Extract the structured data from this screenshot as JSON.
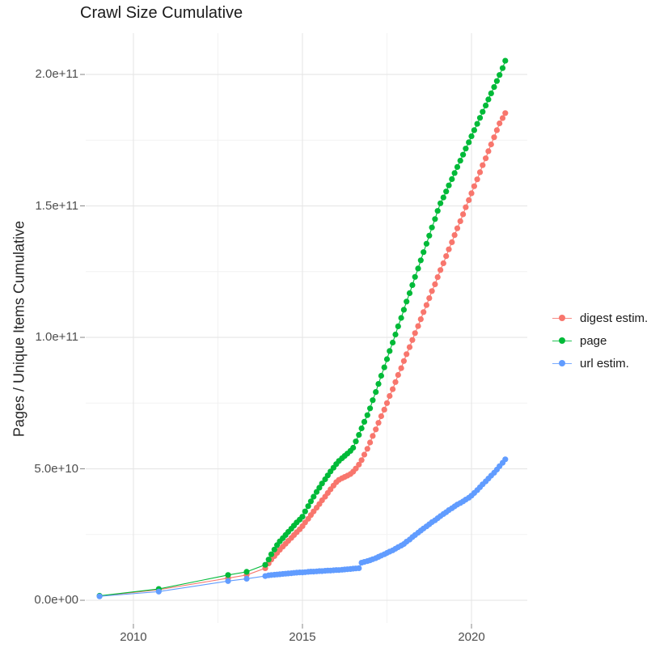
{
  "chart_data": {
    "type": "scatter",
    "title": "Crawl Size Cumulative",
    "xlabel": "",
    "ylabel": "Pages / Unique Items Cumulative",
    "value_unit": "1e9 (value 50 = 5.0e+10)",
    "grid": true,
    "legend_position": "right",
    "x_domain": [
      2008.59,
      2021.65
    ],
    "y_domain": [
      -8.6,
      215.7
    ],
    "x_ticks": [
      {
        "label": "2010",
        "value": 2010
      },
      {
        "label": "2015",
        "value": 2015
      },
      {
        "label": "2020",
        "value": 2020
      }
    ],
    "x_minor_ticks": [
      2012.5,
      2017.5
    ],
    "y_ticks": [
      {
        "label": "0.0e+00",
        "value": 0
      },
      {
        "label": "5.0e+10",
        "value": 50
      },
      {
        "label": "1.0e+11",
        "value": 100
      },
      {
        "label": "1.5e+11",
        "value": 150
      },
      {
        "label": "2.0e+11",
        "value": 200
      }
    ],
    "y_minor_ticks": [
      25,
      75,
      125,
      175
    ],
    "colors": {
      "digest": "#F8766D",
      "page": "#00BA38",
      "url": "#619CFF",
      "grid_major": "#e6e6e6",
      "grid_minor": "#f2f2f2",
      "tick": "#878787"
    },
    "legend": [
      {
        "label": "digest estim.",
        "color": "#F8766D"
      },
      {
        "label": "page",
        "color": "#00BA38"
      },
      {
        "label": "url estim.",
        "color": "#619CFF"
      }
    ],
    "series": [
      {
        "name": "digest estim.",
        "color": "#F8766D",
        "points": [
          [
            2009.0,
            1.6
          ],
          [
            2010.75,
            4.0
          ],
          [
            2012.8,
            8.4
          ],
          [
            2013.35,
            9.6
          ],
          [
            2013.9,
            12.2
          ],
          [
            2014.0,
            14.0
          ],
          [
            2014.08,
            15.5
          ],
          [
            2014.17,
            16.8
          ],
          [
            2014.25,
            18.0
          ],
          [
            2014.33,
            19.2
          ],
          [
            2014.42,
            20.4
          ],
          [
            2014.5,
            21.5
          ],
          [
            2014.58,
            22.6
          ],
          [
            2014.67,
            23.7
          ],
          [
            2014.75,
            24.8
          ],
          [
            2014.83,
            25.9
          ],
          [
            2014.92,
            27.0
          ],
          [
            2015.0,
            28.2
          ],
          [
            2015.08,
            29.6
          ],
          [
            2015.17,
            31.0
          ],
          [
            2015.25,
            32.4
          ],
          [
            2015.33,
            33.8
          ],
          [
            2015.42,
            35.2
          ],
          [
            2015.5,
            36.6
          ],
          [
            2015.58,
            38.0
          ],
          [
            2015.67,
            39.4
          ],
          [
            2015.75,
            40.8
          ],
          [
            2015.83,
            42.2
          ],
          [
            2015.92,
            43.6
          ],
          [
            2016.0,
            44.9
          ],
          [
            2016.08,
            45.8
          ],
          [
            2016.17,
            46.4
          ],
          [
            2016.25,
            46.9
          ],
          [
            2016.33,
            47.4
          ],
          [
            2016.42,
            48.0
          ],
          [
            2016.5,
            48.9
          ],
          [
            2016.58,
            50.1
          ],
          [
            2016.67,
            51.6
          ],
          [
            2016.75,
            53.3
          ],
          [
            2016.83,
            55.4
          ],
          [
            2016.92,
            57.6
          ],
          [
            2017.0,
            60.0
          ],
          [
            2017.08,
            62.5
          ],
          [
            2017.17,
            65.0
          ],
          [
            2017.25,
            67.5
          ],
          [
            2017.33,
            70.0
          ],
          [
            2017.42,
            72.5
          ],
          [
            2017.5,
            75.0
          ],
          [
            2017.58,
            77.7
          ],
          [
            2017.67,
            80.3
          ],
          [
            2017.75,
            83.0
          ],
          [
            2017.83,
            85.7
          ],
          [
            2017.92,
            88.3
          ],
          [
            2018.0,
            91.0
          ],
          [
            2018.08,
            93.6
          ],
          [
            2018.17,
            96.3
          ],
          [
            2018.25,
            99.0
          ],
          [
            2018.33,
            101.6
          ],
          [
            2018.42,
            104.3
          ],
          [
            2018.5,
            106.9
          ],
          [
            2018.58,
            109.6
          ],
          [
            2018.67,
            112.3
          ],
          [
            2018.75,
            114.9
          ],
          [
            2018.83,
            117.6
          ],
          [
            2018.92,
            120.2
          ],
          [
            2019.0,
            122.9
          ],
          [
            2019.08,
            125.6
          ],
          [
            2019.17,
            128.2
          ],
          [
            2019.25,
            130.9
          ],
          [
            2019.33,
            133.5
          ],
          [
            2019.42,
            136.2
          ],
          [
            2019.5,
            138.9
          ],
          [
            2019.58,
            141.5
          ],
          [
            2019.67,
            144.2
          ],
          [
            2019.75,
            146.8
          ],
          [
            2019.83,
            149.5
          ],
          [
            2019.92,
            152.2
          ],
          [
            2020.0,
            154.8
          ],
          [
            2020.08,
            157.5
          ],
          [
            2020.17,
            160.1
          ],
          [
            2020.25,
            162.8
          ],
          [
            2020.33,
            165.5
          ],
          [
            2020.42,
            168.1
          ],
          [
            2020.5,
            170.8
          ],
          [
            2020.58,
            173.4
          ],
          [
            2020.67,
            176.1
          ],
          [
            2020.75,
            178.8
          ],
          [
            2020.83,
            181.4
          ],
          [
            2020.92,
            183.4
          ],
          [
            2021.0,
            185.3
          ]
        ]
      },
      {
        "name": "page",
        "color": "#00BA38",
        "points": [
          [
            2009.0,
            1.7
          ],
          [
            2010.75,
            4.3
          ],
          [
            2012.8,
            9.6
          ],
          [
            2013.35,
            10.8
          ],
          [
            2013.9,
            13.5
          ],
          [
            2014.0,
            15.5
          ],
          [
            2014.08,
            17.5
          ],
          [
            2014.17,
            19.3
          ],
          [
            2014.25,
            21.0
          ],
          [
            2014.33,
            22.4
          ],
          [
            2014.42,
            23.6
          ],
          [
            2014.5,
            24.8
          ],
          [
            2014.58,
            26.0
          ],
          [
            2014.67,
            27.2
          ],
          [
            2014.75,
            28.4
          ],
          [
            2014.83,
            29.6
          ],
          [
            2014.92,
            30.7
          ],
          [
            2015.0,
            31.8
          ],
          [
            2015.08,
            33.8
          ],
          [
            2015.17,
            35.8
          ],
          [
            2015.25,
            37.6
          ],
          [
            2015.33,
            39.4
          ],
          [
            2015.42,
            41.2
          ],
          [
            2015.5,
            42.8
          ],
          [
            2015.58,
            44.4
          ],
          [
            2015.67,
            46.0
          ],
          [
            2015.75,
            47.5
          ],
          [
            2015.83,
            49.0
          ],
          [
            2015.92,
            50.4
          ],
          [
            2016.0,
            51.8
          ],
          [
            2016.08,
            53.0
          ],
          [
            2016.17,
            54.0
          ],
          [
            2016.25,
            54.9
          ],
          [
            2016.33,
            55.8
          ],
          [
            2016.42,
            56.8
          ],
          [
            2016.5,
            58.0
          ],
          [
            2016.58,
            60.4
          ],
          [
            2016.67,
            62.9
          ],
          [
            2016.75,
            65.4
          ],
          [
            2016.83,
            67.9
          ],
          [
            2016.92,
            70.4
          ],
          [
            2017.0,
            73.0
          ],
          [
            2017.08,
            76.1
          ],
          [
            2017.17,
            79.2
          ],
          [
            2017.25,
            82.3
          ],
          [
            2017.33,
            85.4
          ],
          [
            2017.42,
            88.6
          ],
          [
            2017.5,
            91.7
          ],
          [
            2017.58,
            94.8
          ],
          [
            2017.67,
            98.0
          ],
          [
            2017.75,
            101.1
          ],
          [
            2017.83,
            104.2
          ],
          [
            2017.92,
            107.4
          ],
          [
            2018.0,
            110.5
          ],
          [
            2018.08,
            113.6
          ],
          [
            2018.17,
            116.8
          ],
          [
            2018.25,
            119.9
          ],
          [
            2018.33,
            123.0
          ],
          [
            2018.42,
            126.2
          ],
          [
            2018.5,
            129.3
          ],
          [
            2018.58,
            132.4
          ],
          [
            2018.67,
            135.6
          ],
          [
            2018.75,
            138.7
          ],
          [
            2018.83,
            141.8
          ],
          [
            2018.92,
            145.0
          ],
          [
            2019.0,
            148.1
          ],
          [
            2019.08,
            151.0
          ],
          [
            2019.17,
            153.2
          ],
          [
            2019.25,
            155.5
          ],
          [
            2019.33,
            157.8
          ],
          [
            2019.42,
            160.2
          ],
          [
            2019.5,
            162.5
          ],
          [
            2019.58,
            164.8
          ],
          [
            2019.67,
            167.2
          ],
          [
            2019.75,
            169.5
          ],
          [
            2019.83,
            171.8
          ],
          [
            2019.92,
            174.2
          ],
          [
            2020.0,
            176.5
          ],
          [
            2020.08,
            178.8
          ],
          [
            2020.17,
            181.2
          ],
          [
            2020.25,
            183.5
          ],
          [
            2020.33,
            185.8
          ],
          [
            2020.42,
            188.2
          ],
          [
            2020.5,
            190.5
          ],
          [
            2020.58,
            192.8
          ],
          [
            2020.67,
            195.2
          ],
          [
            2020.75,
            197.5
          ],
          [
            2020.83,
            199.8
          ],
          [
            2020.92,
            202.4
          ],
          [
            2021.0,
            205.2
          ]
        ]
      },
      {
        "name": "url estim.",
        "color": "#619CFF",
        "points": [
          [
            2009.0,
            1.5
          ],
          [
            2010.75,
            3.3
          ],
          [
            2012.8,
            7.3
          ],
          [
            2013.35,
            8.2
          ],
          [
            2013.9,
            9.2
          ],
          [
            2014.0,
            9.5
          ],
          [
            2014.08,
            9.6
          ],
          [
            2014.17,
            9.7
          ],
          [
            2014.25,
            9.8
          ],
          [
            2014.33,
            9.9
          ],
          [
            2014.42,
            10.0
          ],
          [
            2014.5,
            10.1
          ],
          [
            2014.58,
            10.2
          ],
          [
            2014.67,
            10.3
          ],
          [
            2014.75,
            10.4
          ],
          [
            2014.83,
            10.5
          ],
          [
            2014.92,
            10.6
          ],
          [
            2015.0,
            10.6
          ],
          [
            2015.08,
            10.7
          ],
          [
            2015.17,
            10.8
          ],
          [
            2015.25,
            10.9
          ],
          [
            2015.33,
            10.9
          ],
          [
            2015.42,
            11.0
          ],
          [
            2015.5,
            11.1
          ],
          [
            2015.58,
            11.1
          ],
          [
            2015.67,
            11.2
          ],
          [
            2015.75,
            11.3
          ],
          [
            2015.83,
            11.3
          ],
          [
            2015.92,
            11.4
          ],
          [
            2016.0,
            11.5
          ],
          [
            2016.08,
            11.5
          ],
          [
            2016.17,
            11.6
          ],
          [
            2016.25,
            11.7
          ],
          [
            2016.33,
            11.8
          ],
          [
            2016.42,
            11.9
          ],
          [
            2016.5,
            12.0
          ],
          [
            2016.58,
            12.1
          ],
          [
            2016.67,
            12.2
          ],
          [
            2016.75,
            14.3
          ],
          [
            2016.83,
            14.6
          ],
          [
            2016.92,
            14.9
          ],
          [
            2017.0,
            15.2
          ],
          [
            2017.08,
            15.6
          ],
          [
            2017.17,
            16.0
          ],
          [
            2017.25,
            16.5
          ],
          [
            2017.33,
            17.0
          ],
          [
            2017.42,
            17.5
          ],
          [
            2017.5,
            18.0
          ],
          [
            2017.58,
            18.5
          ],
          [
            2017.67,
            19.0
          ],
          [
            2017.75,
            19.6
          ],
          [
            2017.83,
            20.2
          ],
          [
            2017.92,
            20.8
          ],
          [
            2018.0,
            21.4
          ],
          [
            2018.08,
            22.3
          ],
          [
            2018.17,
            23.1
          ],
          [
            2018.25,
            24.0
          ],
          [
            2018.33,
            24.8
          ],
          [
            2018.42,
            25.7
          ],
          [
            2018.5,
            26.5
          ],
          [
            2018.58,
            27.3
          ],
          [
            2018.67,
            28.1
          ],
          [
            2018.75,
            28.9
          ],
          [
            2018.83,
            29.7
          ],
          [
            2018.92,
            30.4
          ],
          [
            2019.0,
            31.2
          ],
          [
            2019.08,
            32.0
          ],
          [
            2019.17,
            32.8
          ],
          [
            2019.25,
            33.5
          ],
          [
            2019.33,
            34.3
          ],
          [
            2019.42,
            35.0
          ],
          [
            2019.5,
            35.7
          ],
          [
            2019.58,
            36.4
          ],
          [
            2019.67,
            37.0
          ],
          [
            2019.75,
            37.6
          ],
          [
            2019.83,
            38.3
          ],
          [
            2019.92,
            39.0
          ],
          [
            2020.0,
            39.8
          ],
          [
            2020.08,
            40.8
          ],
          [
            2020.17,
            41.9
          ],
          [
            2020.25,
            43.0
          ],
          [
            2020.33,
            44.1
          ],
          [
            2020.42,
            45.2
          ],
          [
            2020.5,
            46.3
          ],
          [
            2020.58,
            47.4
          ],
          [
            2020.67,
            48.5
          ],
          [
            2020.75,
            49.7
          ],
          [
            2020.83,
            51.0
          ],
          [
            2020.92,
            52.3
          ],
          [
            2021.0,
            53.6
          ]
        ]
      }
    ]
  }
}
